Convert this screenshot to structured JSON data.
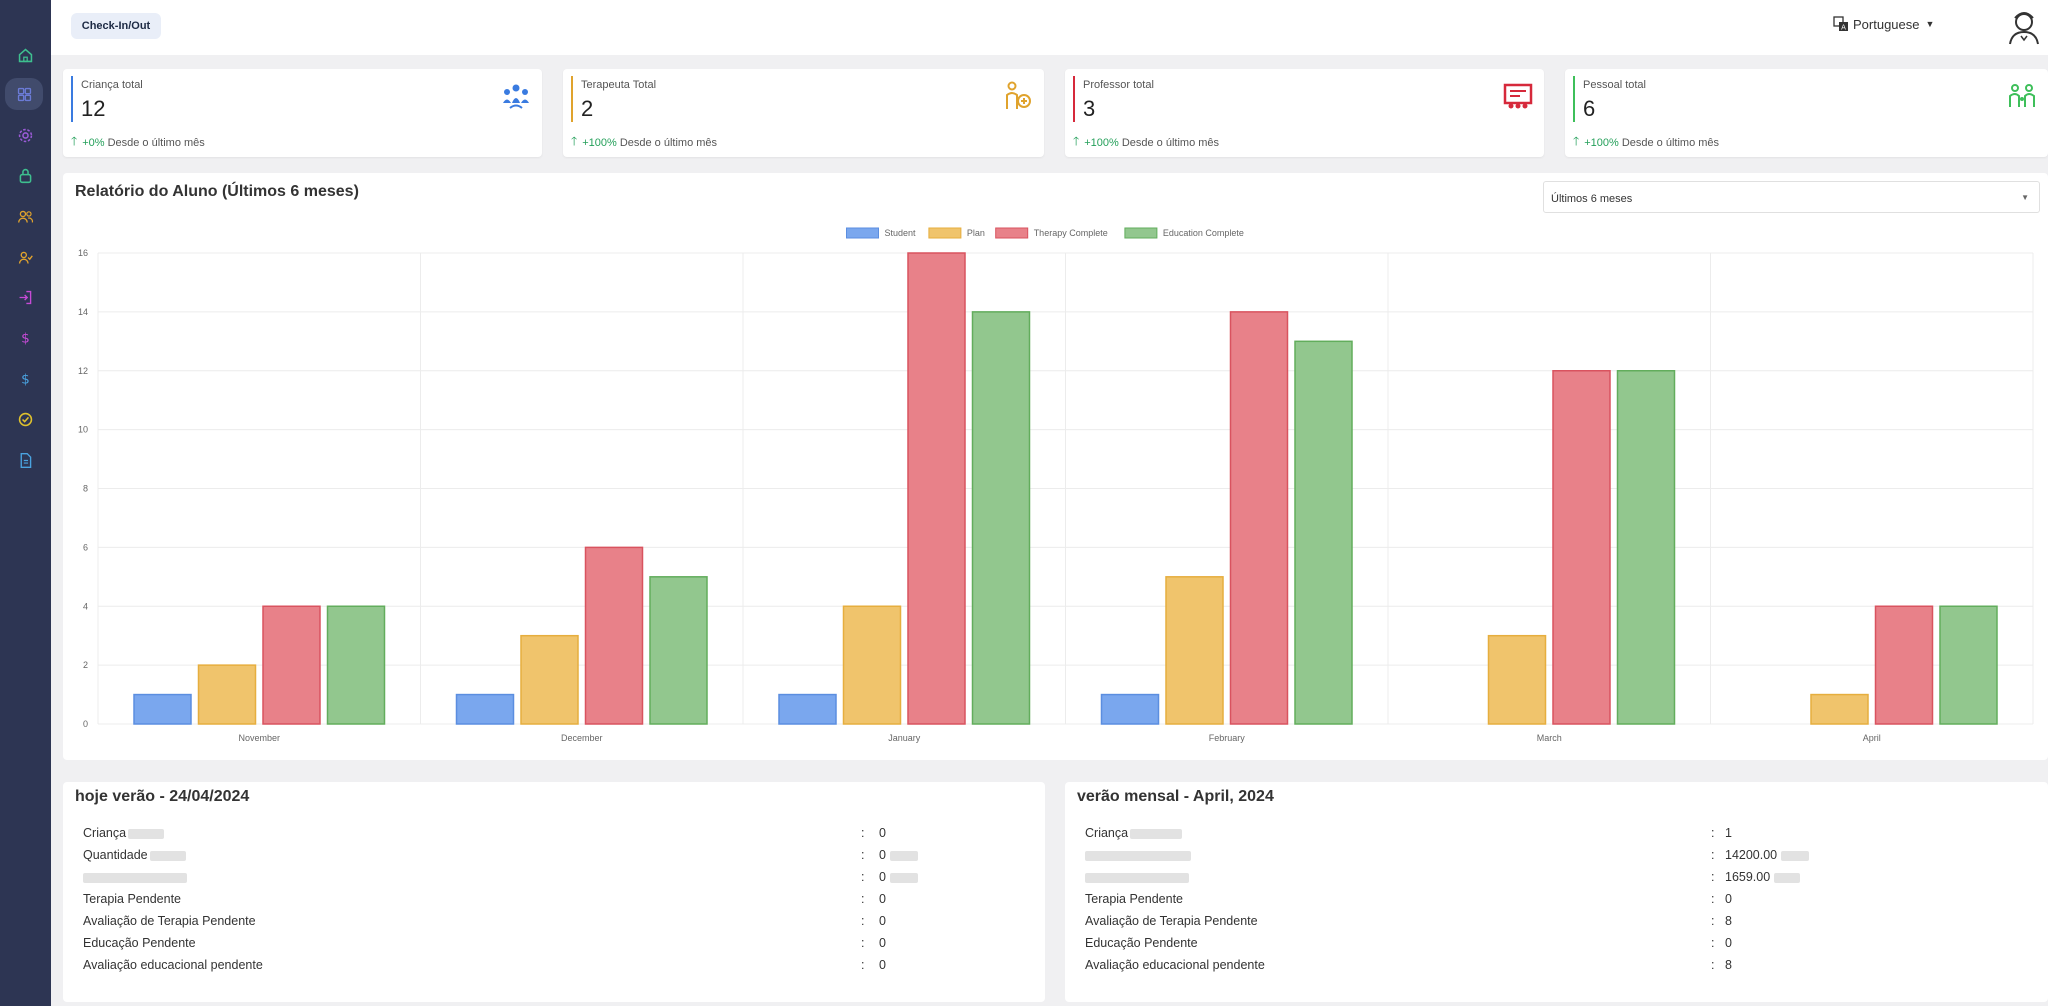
{
  "topbar": {
    "checkin_label": "Check-In/Out",
    "language": "Portuguese",
    "language_icon": "translate-icon",
    "avatar_icon": "user-avatar-icon"
  },
  "sidebar": {
    "items": [
      {
        "icon": "home-icon",
        "color": "#3ebf8f"
      },
      {
        "icon": "dashboard-icon",
        "color": "#6b7bd6"
      },
      {
        "icon": "gear-icon",
        "color": "#9a5bd6"
      },
      {
        "icon": "lock-icon",
        "color": "#3ebf8f"
      },
      {
        "icon": "users-icon",
        "color": "#e0a32d"
      },
      {
        "icon": "user-check-icon",
        "color": "#e0a32d"
      },
      {
        "icon": "login-icon",
        "color": "#c64bd6"
      },
      {
        "icon": "dollar-icon",
        "color": "#c64bd6"
      },
      {
        "icon": "dollar-icon",
        "color": "#4aa3e0"
      },
      {
        "icon": "check-circle-icon",
        "color": "#e0c22d"
      },
      {
        "icon": "document-icon",
        "color": "#4aa3e0"
      }
    ]
  },
  "stats": [
    {
      "label": "Criança total",
      "value": "12",
      "pct": "+0%",
      "desc": "Desde o último mês",
      "color": "#3a7be0",
      "icon": "children-group-icon"
    },
    {
      "label": "Terapeuta Total",
      "value": "2",
      "pct": "+100%",
      "desc": "Desde o último mês",
      "color": "#e0a32d",
      "icon": "therapist-icon"
    },
    {
      "label": "Professor total",
      "value": "3",
      "pct": "+100%",
      "desc": "Desde o último mês",
      "color": "#d6293b",
      "icon": "teacher-board-icon"
    },
    {
      "label": "Pessoal total",
      "value": "6",
      "pct": "+100%",
      "desc": "Desde o último mês",
      "color": "#3ebf5a",
      "icon": "staff-group-icon"
    }
  ],
  "report": {
    "title": "Relatório do Aluno (Últimos 6 meses)",
    "range_selected": "Últimos 6 meses"
  },
  "chart_data": {
    "type": "bar",
    "categories": [
      "November",
      "December",
      "January",
      "February",
      "March",
      "April"
    ],
    "series": [
      {
        "name": "Student",
        "values": [
          1,
          1,
          1,
          1,
          0,
          0
        ],
        "color": "#7aa7ee",
        "stroke": "#5b8ee0"
      },
      {
        "name": "Plan",
        "values": [
          2,
          3,
          4,
          5,
          3,
          1
        ],
        "color": "#f0c46c",
        "stroke": "#e6ae3e"
      },
      {
        "name": "Therapy Complete",
        "values": [
          4,
          6,
          16,
          14,
          12,
          4
        ],
        "color": "#e88189",
        "stroke": "#d9535f"
      },
      {
        "name": "Education Complete",
        "values": [
          4,
          5,
          14,
          13,
          12,
          4
        ],
        "color": "#92c78e",
        "stroke": "#62ad5c"
      }
    ],
    "yticks": [
      "0",
      "2",
      "4",
      "6",
      "8",
      "10",
      "12",
      "14",
      "16"
    ],
    "ylim": [
      0,
      16
    ],
    "grid": true,
    "legend": "top-center"
  },
  "daily": {
    "title": "hoje verão - 24/04/2024",
    "rows": [
      {
        "key": "Criança",
        "blur_key": 36,
        "value": "0",
        "blur_val": 0
      },
      {
        "key": "Quantidade",
        "blur_key": 36,
        "value": "0",
        "blur_val": 28
      },
      {
        "key": "",
        "blur_key": 104,
        "value": "0",
        "blur_val": 28
      },
      {
        "key": "Terapia Pendente",
        "blur_key": 0,
        "value": "0",
        "blur_val": 0
      },
      {
        "key": "Avaliação de Terapia Pendente",
        "blur_key": 0,
        "value": "0",
        "blur_val": 0
      },
      {
        "key": "Educação Pendente",
        "blur_key": 0,
        "value": "0",
        "blur_val": 0
      },
      {
        "key": "Avaliação educacional pendente",
        "blur_key": 0,
        "value": "0",
        "blur_val": 0
      }
    ]
  },
  "monthly": {
    "title": "verão mensal - April, 2024",
    "rows": [
      {
        "key": "Criança",
        "blur_key": 52,
        "value": "1",
        "blur_val": 0
      },
      {
        "key": "",
        "blur_key": 106,
        "value": "14200.00",
        "blur_val": 28
      },
      {
        "key": "",
        "blur_key": 104,
        "value": "1659.00",
        "blur_val": 26
      },
      {
        "key": "Terapia Pendente",
        "blur_key": 0,
        "value": "0",
        "blur_val": 0
      },
      {
        "key": "Avaliação de Terapia Pendente",
        "blur_key": 0,
        "value": "8",
        "blur_val": 0
      },
      {
        "key": "Educação Pendente",
        "blur_key": 0,
        "value": "0",
        "blur_val": 0
      },
      {
        "key": "Avaliação educacional pendente",
        "blur_key": 0,
        "value": "8",
        "blur_val": 0
      }
    ]
  }
}
